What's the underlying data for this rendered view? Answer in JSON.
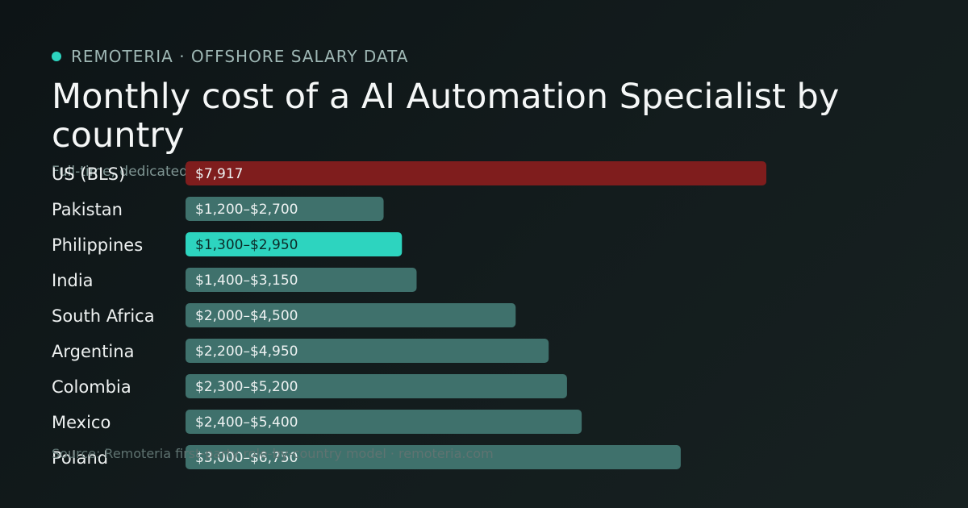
{
  "header": {
    "brand": "REMOTERIA · OFFSHORE SALARY DATA",
    "title": "Monthly cost of a AI Automation Specialist by country",
    "subtitle": "Full-time, dedicated",
    "footer": "Source: Remoteria first-party role-by-country model · remoteria.com"
  },
  "colors": {
    "accent": "#2dd4bf",
    "us_bar": "#7f1d1d",
    "default_bar": "#3f716c",
    "us_label": "#f3b8b2",
    "accent_label": "#2dd4bf"
  },
  "chart_data": {
    "type": "bar",
    "orientation": "horizontal",
    "title": "Monthly cost of a AI Automation Specialist by country",
    "xlim": [
      0,
      7917
    ],
    "categories": [
      "US (BLS)",
      "Pakistan",
      "Philippines",
      "India",
      "South Africa",
      "Argentina",
      "Colombia",
      "Mexico",
      "Poland"
    ],
    "series": [
      {
        "low": [
          7917,
          1200,
          1300,
          1400,
          2000,
          2200,
          2300,
          2400,
          3000
        ],
        "high": [
          7917,
          2700,
          2950,
          3150,
          4500,
          4950,
          5200,
          5400,
          6750
        ]
      }
    ],
    "value_labels": [
      "$7,917",
      "$1,200–$2,700",
      "$1,300–$2,950",
      "$1,400–$3,150",
      "$2,000–$4,500",
      "$2,200–$4,950",
      "$2,300–$5,200",
      "$2,400–$5,400",
      "$3,000–$6,750"
    ],
    "highlight": {
      "benchmark": "US (BLS)",
      "accent": "Philippines"
    }
  }
}
